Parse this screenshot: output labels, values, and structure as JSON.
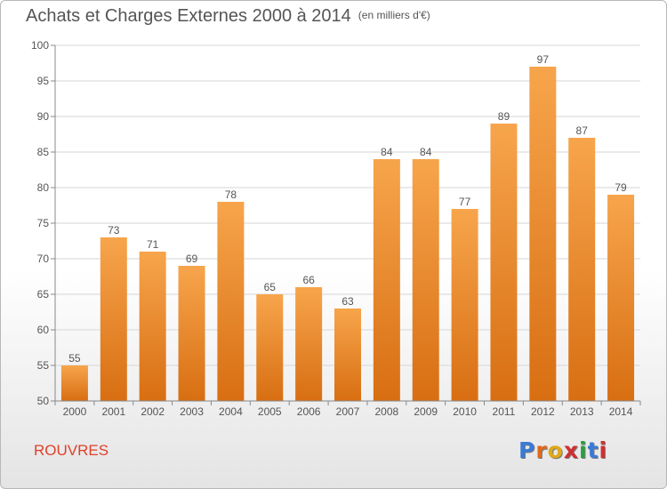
{
  "title": "Achats et Charges Externes 2000 à 2014",
  "unit": "(en milliers d'€)",
  "commune": "ROUVRES",
  "logo": {
    "text": "Proxiti",
    "colors": [
      "#3a7ad4",
      "#e06a1a",
      "#e0a81a",
      "#d03030",
      "#2aa040",
      "#3a7ad4",
      "#d03030"
    ]
  },
  "colors": {
    "bar_top": "#f7a54c",
    "bar_bottom": "#d86e12",
    "axis": "#888888",
    "grid": "#d6d6d6",
    "text": "#555555",
    "commune": "#e0402a"
  },
  "chart_data": {
    "type": "bar",
    "categories": [
      "2000",
      "2001",
      "2002",
      "2003",
      "2004",
      "2005",
      "2006",
      "2007",
      "2008",
      "2009",
      "2010",
      "2011",
      "2012",
      "2013",
      "2014"
    ],
    "values": [
      55,
      73,
      71,
      69,
      78,
      65,
      66,
      63,
      84,
      84,
      77,
      89,
      97,
      87,
      79
    ],
    "title": "Achats et Charges Externes 2000 à 2014",
    "xlabel": "",
    "ylabel": "",
    "ylim": [
      50,
      100
    ],
    "yticks": [
      50,
      55,
      60,
      65,
      70,
      75,
      80,
      85,
      90,
      95,
      100
    ],
    "grid": true,
    "data_labels": true
  }
}
